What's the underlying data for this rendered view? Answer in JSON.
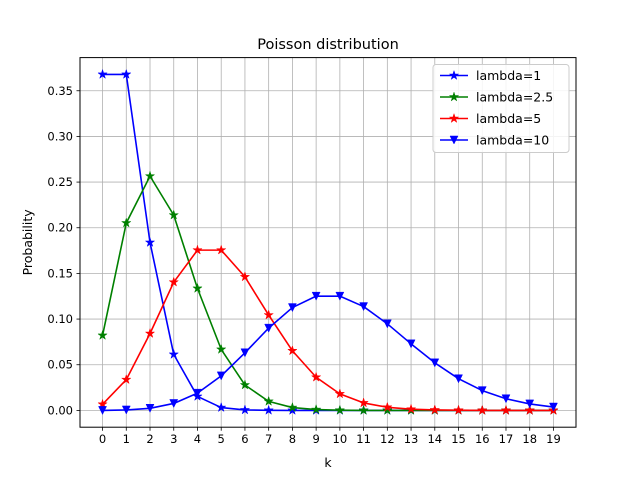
{
  "chart_data": {
    "type": "line",
    "title": "Poisson distribution",
    "xlabel": "k",
    "ylabel": "Probability",
    "x": [
      0,
      1,
      2,
      3,
      4,
      5,
      6,
      7,
      8,
      9,
      10,
      11,
      12,
      13,
      14,
      15,
      16,
      17,
      18,
      19
    ],
    "xlim": [
      -0.95,
      19.95
    ],
    "ylim": [
      -0.0184,
      0.3863
    ],
    "yticks": [
      0.0,
      0.05,
      0.1,
      0.15,
      0.2,
      0.25,
      0.3,
      0.35
    ],
    "ytick_labels": [
      "0.00",
      "0.05",
      "0.10",
      "0.15",
      "0.20",
      "0.25",
      "0.30",
      "0.35"
    ],
    "xtick_labels": [
      "0",
      "1",
      "2",
      "3",
      "4",
      "5",
      "6",
      "7",
      "8",
      "9",
      "10",
      "11",
      "12",
      "13",
      "14",
      "15",
      "16",
      "17",
      "18",
      "19"
    ],
    "grid": true,
    "legend_position": "top-right",
    "series": [
      {
        "name": "lambda=1",
        "color": "#0000ff",
        "marker": "star",
        "values": [
          0.3679,
          0.3679,
          0.1839,
          0.0613,
          0.0153,
          0.0031,
          0.0005,
          0.0001,
          0.0,
          0.0,
          0.0,
          0.0,
          0.0,
          0.0,
          0.0,
          0.0,
          0.0,
          0.0,
          0.0,
          0.0
        ]
      },
      {
        "name": "lambda=2.5",
        "color": "#008000",
        "marker": "star",
        "values": [
          0.0821,
          0.2052,
          0.2565,
          0.2138,
          0.1336,
          0.0668,
          0.0278,
          0.0099,
          0.0031,
          0.0009,
          0.0002,
          0.0,
          0.0,
          0.0,
          0.0,
          0.0,
          0.0,
          0.0,
          0.0,
          0.0
        ]
      },
      {
        "name": "lambda=5",
        "color": "#ff0000",
        "marker": "star",
        "values": [
          0.0067,
          0.0337,
          0.0842,
          0.1404,
          0.1755,
          0.1755,
          0.1462,
          0.1044,
          0.0653,
          0.0363,
          0.0181,
          0.0082,
          0.0034,
          0.0013,
          0.0005,
          0.0002,
          0.0,
          0.0,
          0.0,
          0.0
        ]
      },
      {
        "name": "lambda=10",
        "color": "#0000ff",
        "marker": "triangle-down",
        "values": [
          0.0,
          0.0005,
          0.0023,
          0.0076,
          0.0189,
          0.0378,
          0.0631,
          0.0901,
          0.1126,
          0.1251,
          0.1251,
          0.1137,
          0.0948,
          0.0729,
          0.0521,
          0.0347,
          0.0217,
          0.0128,
          0.0071,
          0.0037
        ]
      }
    ]
  }
}
